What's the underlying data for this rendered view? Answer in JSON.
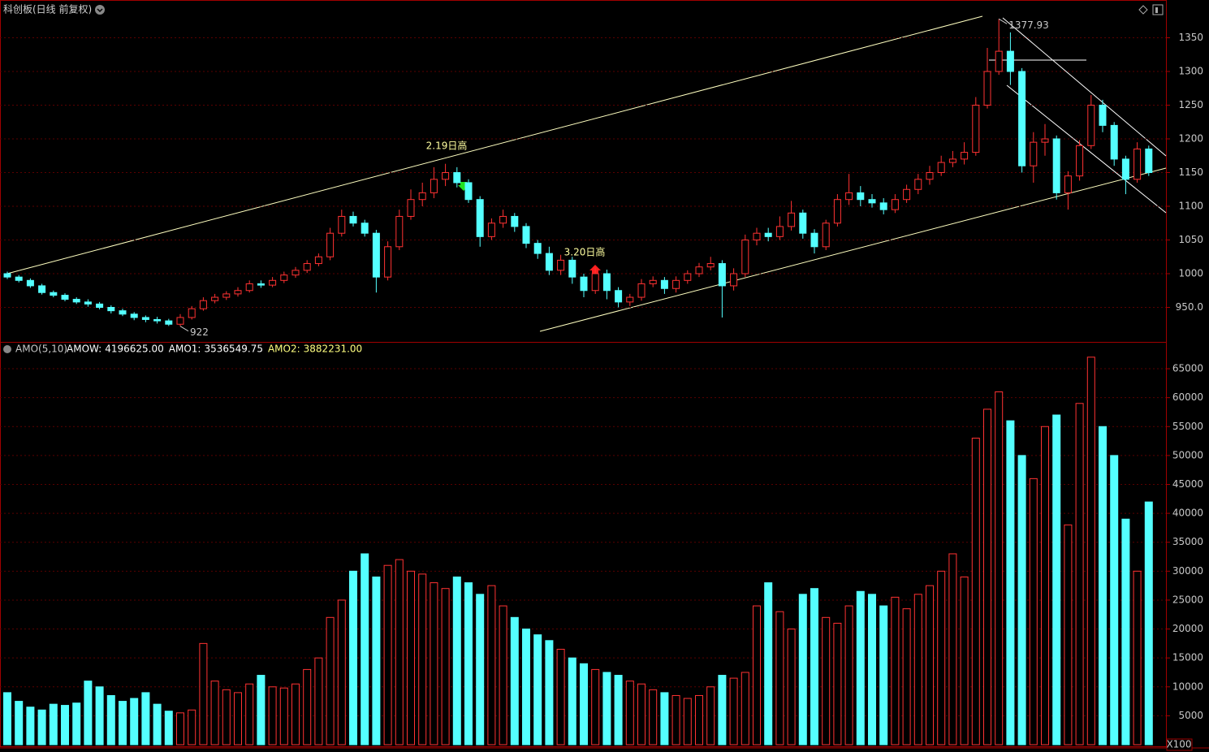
{
  "header": {
    "title": "科创板(日线 前复权)"
  },
  "chart_data": [
    {
      "type": "candlestick",
      "annotations": [
        "2.19日高",
        "3.20日高"
      ],
      "ylim": [
        900,
        1400
      ],
      "yticks": [
        {
          "value": 950,
          "label": "950.0"
        },
        1000,
        1050,
        1100,
        1150,
        1200,
        1250,
        1300,
        1350
      ],
      "grid": true,
      "up_color": "#ff3232",
      "down_color": "#54ffff",
      "open": [
        1000,
        995,
        990,
        982,
        972,
        968,
        962,
        958,
        955,
        950,
        945,
        940,
        935,
        932,
        930,
        925,
        935,
        948,
        960,
        965,
        970,
        975,
        985,
        983,
        990,
        998,
        1005,
        1015,
        1025,
        1060,
        1085,
        1075,
        1060,
        995,
        1040,
        1085,
        1110,
        1120,
        1140,
        1150,
        1135,
        1110,
        1055,
        1075,
        1085,
        1070,
        1045,
        1030,
        1005,
        1020,
        995,
        975,
        1000,
        975,
        958,
        965,
        985,
        990,
        978,
        990,
        1000,
        1010,
        1015,
        982,
        1000,
        1050,
        1060,
        1055,
        1070,
        1090,
        1060,
        1040,
        1075,
        1110,
        1120,
        1110,
        1105,
        1095,
        1110,
        1125,
        1140,
        1150,
        1165,
        1170,
        1180,
        1250,
        1300,
        1330,
        1300,
        1160,
        1195,
        1200,
        1120,
        1145,
        1190,
        1250,
        1220,
        1170,
        1140,
        1185
      ],
      "high": [
        1003,
        998,
        993,
        985,
        975,
        971,
        965,
        962,
        958,
        953,
        948,
        943,
        938,
        936,
        933,
        940,
        952,
        965,
        970,
        974,
        980,
        990,
        990,
        995,
        1003,
        1010,
        1020,
        1030,
        1068,
        1095,
        1092,
        1080,
        1065,
        1048,
        1095,
        1125,
        1135,
        1158,
        1163,
        1158,
        1140,
        1115,
        1082,
        1095,
        1090,
        1075,
        1050,
        1040,
        1028,
        1025,
        1000,
        1008,
        1006,
        980,
        970,
        992,
        996,
        995,
        996,
        1005,
        1016,
        1025,
        1020,
        1008,
        1058,
        1068,
        1068,
        1085,
        1108,
        1095,
        1066,
        1080,
        1118,
        1148,
        1130,
        1118,
        1112,
        1118,
        1132,
        1148,
        1160,
        1175,
        1182,
        1195,
        1262,
        1335,
        1377.93,
        1358,
        1305,
        1210,
        1222,
        1205,
        1152,
        1198,
        1265,
        1258,
        1225,
        1175,
        1195,
        1190
      ],
      "low": [
        992,
        987,
        979,
        969,
        965,
        959,
        955,
        951,
        947,
        941,
        937,
        931,
        928,
        926,
        922.39,
        922,
        932,
        945,
        956,
        961,
        966,
        972,
        979,
        980,
        986,
        994,
        1001,
        1011,
        1020,
        1055,
        1070,
        1055,
        972,
        990,
        1035,
        1080,
        1100,
        1112,
        1130,
        1128,
        1105,
        1040,
        1050,
        1068,
        1062,
        1038,
        1022,
        998,
        998,
        985,
        965,
        970,
        962,
        950,
        952,
        960,
        980,
        970,
        972,
        985,
        995,
        1005,
        935,
        975,
        995,
        1042,
        1048,
        1050,
        1064,
        1052,
        1030,
        1035,
        1070,
        1102,
        1100,
        1098,
        1088,
        1090,
        1105,
        1118,
        1132,
        1145,
        1158,
        1162,
        1175,
        1245,
        1295,
        1280,
        1150,
        1135,
        1175,
        1110,
        1095,
        1138,
        1185,
        1210,
        1160,
        1118,
        1135,
        1145
      ],
      "close": [
        995,
        990,
        982,
        972,
        968,
        962,
        958,
        955,
        950,
        945,
        940,
        935,
        932,
        930,
        925,
        935,
        948,
        960,
        965,
        970,
        975,
        985,
        983,
        990,
        998,
        1005,
        1015,
        1025,
        1060,
        1085,
        1075,
        1060,
        995,
        1040,
        1085,
        1110,
        1120,
        1140,
        1150,
        1135,
        1110,
        1055,
        1075,
        1085,
        1070,
        1045,
        1030,
        1005,
        1020,
        995,
        975,
        1000,
        975,
        958,
        965,
        985,
        990,
        978,
        990,
        1000,
        1010,
        1015,
        982,
        1000,
        1050,
        1060,
        1055,
        1070,
        1090,
        1060,
        1040,
        1075,
        1110,
        1120,
        1110,
        1105,
        1095,
        1110,
        1125,
        1140,
        1150,
        1165,
        1170,
        1180,
        1250,
        1300,
        1330,
        1300,
        1160,
        1195,
        1200,
        1120,
        1145,
        1190,
        1250,
        1220,
        1170,
        1140,
        1185,
        1150
      ]
    },
    {
      "type": "bar",
      "title": "AMO(5,10)",
      "indicators": [
        {
          "name": "AMOW:",
          "value": {
            "value": 4196625,
            "label": "4196625.00"
          }
        },
        {
          "name": "AMO1:",
          "value": {
            "value": 3536549.75,
            "label": "3536549.75"
          }
        },
        {
          "name": "AMO2:",
          "value": {
            "value": 3882231,
            "label": "3882231.00"
          }
        }
      ],
      "unit_label": "X100",
      "ylim": [
        0,
        69500
      ],
      "yticks": [
        5000,
        10000,
        15000,
        20000,
        25000,
        30000,
        35000,
        40000,
        45000,
        50000,
        55000,
        60000,
        65000
      ],
      "grid": true,
      "values": [
        9000,
        7500,
        6500,
        6000,
        7000,
        6800,
        7200,
        11000,
        10000,
        8500,
        7500,
        8000,
        9000,
        7000,
        5800,
        5500,
        6000,
        17500,
        11000,
        9500,
        9000,
        10500,
        12000,
        10000,
        9800,
        10500,
        13000,
        15000,
        22000,
        25000,
        30000,
        33000,
        29000,
        31000,
        32000,
        30000,
        29500,
        28000,
        27000,
        29000,
        28000,
        26000,
        27500,
        24000,
        22000,
        20000,
        19000,
        18000,
        16500,
        15000,
        14000,
        13000,
        12500,
        12000,
        11000,
        10500,
        9500,
        9000,
        8500,
        8000,
        8500,
        10000,
        12000,
        11500,
        12500,
        24000,
        28000,
        23000,
        20000,
        26000,
        27000,
        22000,
        21000,
        24000,
        26500,
        26000,
        24000,
        25500,
        23500,
        26000,
        27500,
        30000,
        33000,
        29000,
        53000,
        58000,
        61000,
        56000,
        50000,
        46000,
        55000,
        57000,
        38000,
        59000,
        67000,
        55000,
        50000,
        39000,
        30000,
        41966
      ]
    }
  ]
}
